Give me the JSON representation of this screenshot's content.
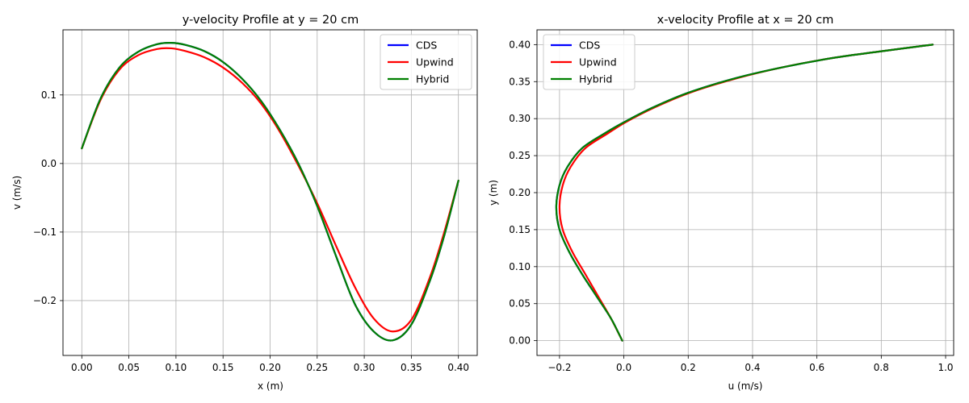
{
  "chart_data": [
    {
      "type": "line",
      "title": "y-velocity Profile at y = 20 cm",
      "xlabel": "x (m)",
      "ylabel": "v (m/s)",
      "xlim": [
        -0.02,
        0.42
      ],
      "ylim": [
        -0.28,
        0.195
      ],
      "xticks": [
        0.0,
        0.05,
        0.1,
        0.15,
        0.2,
        0.25,
        0.3,
        0.35,
        0.4
      ],
      "xtick_labels": [
        "0.00",
        "0.05",
        "0.10",
        "0.15",
        "0.20",
        "0.25",
        "0.30",
        "0.35",
        "0.40"
      ],
      "yticks": [
        -0.2,
        -0.1,
        0.0,
        0.1
      ],
      "ytick_labels": [
        "−0.2",
        "−0.1",
        "0.0",
        "0.1"
      ],
      "grid": true,
      "legend": "top-right",
      "series": [
        {
          "name": "CDS",
          "color": "#0000ff",
          "x": [
            0.0,
            0.02,
            0.04,
            0.06,
            0.08,
            0.095,
            0.11,
            0.13,
            0.15,
            0.17,
            0.19,
            0.21,
            0.23,
            0.25,
            0.27,
            0.29,
            0.31,
            0.33,
            0.35,
            0.37,
            0.385,
            0.4
          ],
          "y": [
            0.022,
            0.095,
            0.14,
            0.163,
            0.174,
            0.176,
            0.173,
            0.164,
            0.148,
            0.124,
            0.092,
            0.05,
            0.0,
            -0.062,
            -0.135,
            -0.205,
            -0.245,
            -0.258,
            -0.235,
            -0.17,
            -0.105,
            -0.025
          ]
        },
        {
          "name": "Upwind",
          "color": "#ff0000",
          "x": [
            0.0,
            0.02,
            0.04,
            0.06,
            0.08,
            0.095,
            0.11,
            0.13,
            0.15,
            0.17,
            0.19,
            0.21,
            0.23,
            0.25,
            0.27,
            0.29,
            0.31,
            0.33,
            0.35,
            0.37,
            0.385,
            0.4
          ],
          "y": [
            0.022,
            0.093,
            0.137,
            0.158,
            0.167,
            0.168,
            0.164,
            0.155,
            0.14,
            0.118,
            0.088,
            0.047,
            -0.003,
            -0.058,
            -0.12,
            -0.18,
            -0.226,
            -0.245,
            -0.228,
            -0.165,
            -0.1,
            -0.025
          ]
        },
        {
          "name": "Hybrid",
          "color": "#008000",
          "x": [
            0.0,
            0.02,
            0.04,
            0.06,
            0.08,
            0.095,
            0.11,
            0.13,
            0.15,
            0.17,
            0.19,
            0.21,
            0.23,
            0.25,
            0.27,
            0.29,
            0.31,
            0.33,
            0.35,
            0.37,
            0.385,
            0.4
          ],
          "y": [
            0.022,
            0.095,
            0.14,
            0.163,
            0.174,
            0.176,
            0.173,
            0.164,
            0.148,
            0.124,
            0.092,
            0.05,
            0.0,
            -0.062,
            -0.135,
            -0.205,
            -0.245,
            -0.258,
            -0.235,
            -0.17,
            -0.105,
            -0.025
          ]
        }
      ]
    },
    {
      "type": "line",
      "title": "x-velocity Profile at x = 20 cm",
      "xlabel": "u (m/s)",
      "ylabel": "y (m)",
      "xlim": [
        -0.27,
        1.025
      ],
      "ylim": [
        -0.02,
        0.42
      ],
      "xticks": [
        -0.2,
        0.0,
        0.2,
        0.4,
        0.6,
        0.8,
        1.0
      ],
      "xtick_labels": [
        "−0.2",
        "0.0",
        "0.2",
        "0.4",
        "0.6",
        "0.8",
        "1.0"
      ],
      "yticks": [
        0.0,
        0.05,
        0.1,
        0.15,
        0.2,
        0.25,
        0.3,
        0.35,
        0.4
      ],
      "ytick_labels": [
        "0.00",
        "0.05",
        "0.10",
        "0.15",
        "0.20",
        "0.25",
        "0.30",
        "0.35",
        "0.40"
      ],
      "grid": true,
      "legend": "top-left",
      "series": [
        {
          "name": "CDS",
          "color": "#0000ff",
          "x": [
            -0.005,
            -0.04,
            -0.085,
            -0.13,
            -0.17,
            -0.2,
            -0.21,
            -0.2,
            -0.175,
            -0.13,
            -0.06,
            0.0,
            0.09,
            0.2,
            0.35,
            0.5,
            0.65,
            0.8,
            0.96
          ],
          "y": [
            0.0,
            0.03,
            0.06,
            0.09,
            0.12,
            0.15,
            0.18,
            0.21,
            0.235,
            0.26,
            0.28,
            0.295,
            0.315,
            0.335,
            0.355,
            0.37,
            0.382,
            0.391,
            0.4
          ]
        },
        {
          "name": "Upwind",
          "color": "#ff0000",
          "x": [
            -0.005,
            -0.04,
            -0.08,
            -0.12,
            -0.16,
            -0.19,
            -0.2,
            -0.19,
            -0.165,
            -0.12,
            -0.05,
            0.005,
            0.095,
            0.205,
            0.355,
            0.5,
            0.65,
            0.8,
            0.96
          ],
          "y": [
            0.0,
            0.03,
            0.06,
            0.09,
            0.12,
            0.15,
            0.18,
            0.21,
            0.235,
            0.26,
            0.28,
            0.295,
            0.315,
            0.335,
            0.355,
            0.37,
            0.382,
            0.391,
            0.4
          ]
        },
        {
          "name": "Hybrid",
          "color": "#008000",
          "x": [
            -0.005,
            -0.04,
            -0.085,
            -0.13,
            -0.17,
            -0.2,
            -0.21,
            -0.2,
            -0.175,
            -0.13,
            -0.06,
            0.0,
            0.09,
            0.2,
            0.35,
            0.5,
            0.65,
            0.8,
            0.96
          ],
          "y": [
            0.0,
            0.03,
            0.06,
            0.09,
            0.12,
            0.15,
            0.18,
            0.21,
            0.235,
            0.26,
            0.28,
            0.295,
            0.315,
            0.335,
            0.355,
            0.37,
            0.382,
            0.391,
            0.4
          ]
        }
      ]
    }
  ]
}
